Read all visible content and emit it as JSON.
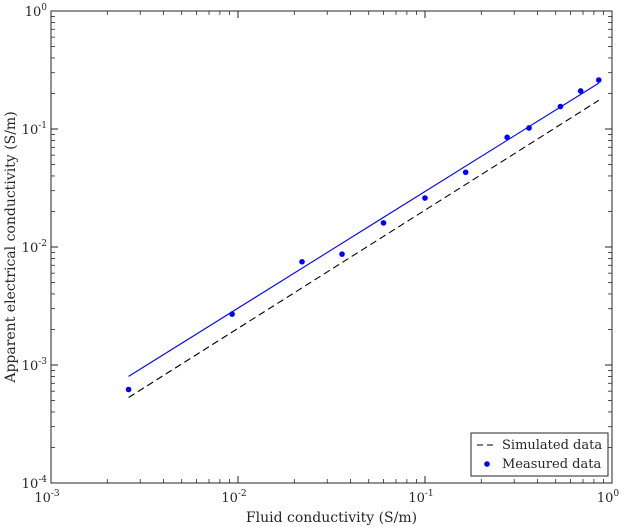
{
  "chart_data": {
    "type": "scatter",
    "title": "",
    "xlabel": "Fluid conductivity (S/m)",
    "ylabel": "Apparent electrical conductivity (S/m)",
    "xscale": "log",
    "yscale": "log",
    "xlim": [
      0.001,
      1
    ],
    "ylim": [
      0.0001,
      1
    ],
    "xticks": [
      {
        "value": 0.001,
        "base": "10",
        "exp": "-3"
      },
      {
        "value": 0.01,
        "base": "10",
        "exp": "-2"
      },
      {
        "value": 0.1,
        "base": "10",
        "exp": "-1"
      },
      {
        "value": 1,
        "base": "10",
        "exp": "0"
      }
    ],
    "yticks": [
      {
        "value": 0.0001,
        "base": "10",
        "exp": "-4"
      },
      {
        "value": 0.001,
        "base": "10",
        "exp": "-3"
      },
      {
        "value": 0.01,
        "base": "10",
        "exp": "-2"
      },
      {
        "value": 0.1,
        "base": "10",
        "exp": "-1"
      },
      {
        "value": 1,
        "base": "10",
        "exp": "0"
      }
    ],
    "grid": false,
    "legend_position": "bottom-right",
    "series": [
      {
        "name": "Simulated data",
        "kind": "line",
        "style": "dashed",
        "color": "#000000",
        "x": [
          0.0026,
          0.85
        ],
        "y": [
          0.00053,
          0.175
        ]
      },
      {
        "kind": "line",
        "style": "solid",
        "color": "#0000ff",
        "x": [
          0.0026,
          0.85
        ],
        "y": [
          0.0008,
          0.245
        ]
      },
      {
        "name": "Measured data",
        "kind": "scatter",
        "color": "#0000ff",
        "x": [
          0.0026,
          0.0093,
          0.022,
          0.036,
          0.06,
          0.1,
          0.165,
          0.275,
          0.36,
          0.53,
          0.68,
          0.85
        ],
        "y": [
          0.00062,
          0.0027,
          0.0075,
          0.0087,
          0.016,
          0.026,
          0.043,
          0.085,
          0.102,
          0.155,
          0.21,
          0.26
        ]
      }
    ]
  }
}
